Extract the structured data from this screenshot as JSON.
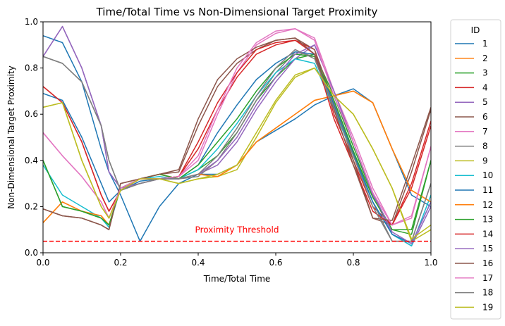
{
  "chart_data": {
    "type": "line",
    "title": "Time/Total Time vs Non-Dimensional Target Proximity",
    "xlabel": "Time/Total Time",
    "ylabel": "Non-Dimensional Target Proximity",
    "xlim": [
      0,
      1
    ],
    "ylim": [
      0,
      1
    ],
    "xticks": [
      "0.0",
      "0.2",
      "0.4",
      "0.6",
      "0.8",
      "1.0"
    ],
    "yticks": [
      "0.0",
      "0.2",
      "0.4",
      "0.6",
      "0.8",
      "1.0"
    ],
    "grid": false,
    "legend": {
      "title": "ID",
      "placement": "outside-right"
    },
    "threshold": {
      "y": 0.05,
      "label": "Proximity Threshold",
      "color": "#ff0000",
      "style": "dashed"
    },
    "x": [
      0,
      0.05,
      0.1,
      0.15,
      0.17,
      0.2,
      0.25,
      0.3,
      0.35,
      0.4,
      0.45,
      0.5,
      0.55,
      0.6,
      0.65,
      0.7,
      0.75,
      0.8,
      0.85,
      0.9,
      0.95,
      1.0
    ],
    "series": [
      {
        "name": "1",
        "color": "#1f77b4",
        "values": [
          0.94,
          0.91,
          0.74,
          0.45,
          0.35,
          0.25,
          0.05,
          0.2,
          0.3,
          0.34,
          0.34,
          0.38,
          0.48,
          0.53,
          0.58,
          0.64,
          0.68,
          0.71,
          0.65,
          0.45,
          0.25,
          0.2
        ]
      },
      {
        "name": "2",
        "color": "#ff7f0e",
        "values": [
          0.13,
          0.22,
          0.18,
          0.16,
          0.12,
          0.28,
          0.32,
          0.34,
          0.32,
          0.34,
          0.33,
          0.38,
          0.48,
          0.54,
          0.6,
          0.66,
          0.68,
          0.7,
          0.65,
          0.45,
          0.27,
          0.22
        ]
      },
      {
        "name": "3",
        "color": "#2ca02c",
        "values": [
          0.4,
          0.2,
          0.18,
          0.15,
          0.12,
          0.28,
          0.32,
          0.34,
          0.32,
          0.36,
          0.42,
          0.52,
          0.66,
          0.76,
          0.84,
          0.86,
          0.68,
          0.46,
          0.25,
          0.1,
          0.08,
          0.4
        ]
      },
      {
        "name": "4",
        "color": "#d62728",
        "values": [
          0.72,
          0.65,
          0.48,
          0.25,
          0.18,
          0.27,
          0.32,
          0.32,
          0.33,
          0.45,
          0.62,
          0.76,
          0.86,
          0.9,
          0.92,
          0.88,
          0.6,
          0.4,
          0.2,
          0.12,
          0.28,
          0.55
        ]
      },
      {
        "name": "5",
        "color": "#9467bd",
        "values": [
          0.85,
          0.98,
          0.8,
          0.55,
          0.35,
          0.28,
          0.3,
          0.32,
          0.32,
          0.34,
          0.38,
          0.48,
          0.62,
          0.74,
          0.84,
          0.9,
          0.7,
          0.48,
          0.25,
          0.08,
          0.03,
          0.2
        ]
      },
      {
        "name": "6",
        "color": "#8c564b",
        "values": [
          0.19,
          0.16,
          0.15,
          0.12,
          0.1,
          0.3,
          0.32,
          0.34,
          0.35,
          0.55,
          0.72,
          0.82,
          0.88,
          0.92,
          0.93,
          0.88,
          0.65,
          0.4,
          0.15,
          0.12,
          0.35,
          0.62
        ]
      },
      {
        "name": "7",
        "color": "#e377c2",
        "values": [
          0.52,
          0.42,
          0.33,
          0.22,
          0.15,
          0.28,
          0.32,
          0.32,
          0.33,
          0.4,
          0.6,
          0.78,
          0.9,
          0.95,
          0.97,
          0.93,
          0.7,
          0.5,
          0.28,
          0.12,
          0.15,
          0.46
        ]
      },
      {
        "name": "8",
        "color": "#7f7f7f",
        "values": [
          0.85,
          0.82,
          0.74,
          0.55,
          0.4,
          0.27,
          0.3,
          0.32,
          0.32,
          0.33,
          0.4,
          0.52,
          0.66,
          0.78,
          0.87,
          0.85,
          0.65,
          0.44,
          0.22,
          0.05,
          0.05,
          0.3
        ]
      },
      {
        "name": "9",
        "color": "#bcbd22",
        "values": [
          0.63,
          0.65,
          0.4,
          0.2,
          0.15,
          0.27,
          0.32,
          0.32,
          0.3,
          0.32,
          0.33,
          0.36,
          0.5,
          0.65,
          0.76,
          0.8,
          0.68,
          0.6,
          0.45,
          0.28,
          0.05,
          0.1
        ]
      },
      {
        "name": "10",
        "color": "#17becf",
        "values": [
          0.38,
          0.25,
          0.2,
          0.15,
          0.11,
          0.28,
          0.32,
          0.33,
          0.32,
          0.36,
          0.45,
          0.56,
          0.68,
          0.78,
          0.84,
          0.82,
          0.62,
          0.42,
          0.22,
          0.08,
          0.03,
          0.25
        ]
      },
      {
        "name": "11",
        "color": "#1f77b4",
        "values": [
          0.69,
          0.66,
          0.5,
          0.3,
          0.22,
          0.27,
          0.31,
          0.32,
          0.32,
          0.38,
          0.52,
          0.64,
          0.75,
          0.82,
          0.87,
          0.86,
          0.64,
          0.43,
          0.22,
          0.08,
          0.04,
          0.22
        ]
      },
      {
        "name": "12",
        "color": "#ff7f0e",
        "values": [
          0.13,
          0.22,
          0.18,
          0.16,
          0.12,
          0.28,
          0.32,
          0.34,
          0.32,
          0.34,
          0.33,
          0.38,
          0.48,
          0.54,
          0.6,
          0.66,
          0.68,
          0.7,
          0.65,
          0.45,
          0.27,
          0.22
        ]
      },
      {
        "name": "13",
        "color": "#2ca02c",
        "values": [
          0.4,
          0.2,
          0.18,
          0.15,
          0.12,
          0.28,
          0.32,
          0.34,
          0.32,
          0.38,
          0.48,
          0.58,
          0.7,
          0.8,
          0.86,
          0.85,
          0.66,
          0.44,
          0.24,
          0.1,
          0.1,
          0.4
        ]
      },
      {
        "name": "14",
        "color": "#d62728",
        "values": [
          0.72,
          0.65,
          0.48,
          0.25,
          0.18,
          0.27,
          0.32,
          0.32,
          0.33,
          0.48,
          0.65,
          0.78,
          0.88,
          0.91,
          0.92,
          0.86,
          0.58,
          0.38,
          0.18,
          0.12,
          0.3,
          0.57
        ]
      },
      {
        "name": "15",
        "color": "#9467bd",
        "values": [
          0.85,
          0.98,
          0.8,
          0.55,
          0.35,
          0.28,
          0.3,
          0.32,
          0.32,
          0.34,
          0.4,
          0.5,
          0.64,
          0.76,
          0.86,
          0.9,
          0.7,
          0.48,
          0.26,
          0.09,
          0.04,
          0.22
        ]
      },
      {
        "name": "16",
        "color": "#8c564b",
        "values": [
          0.19,
          0.16,
          0.15,
          0.12,
          0.1,
          0.3,
          0.32,
          0.34,
          0.36,
          0.58,
          0.75,
          0.84,
          0.89,
          0.92,
          0.93,
          0.86,
          0.62,
          0.38,
          0.15,
          0.14,
          0.38,
          0.63
        ]
      },
      {
        "name": "17",
        "color": "#e377c2",
        "values": [
          0.52,
          0.42,
          0.33,
          0.22,
          0.15,
          0.28,
          0.32,
          0.32,
          0.33,
          0.42,
          0.62,
          0.8,
          0.91,
          0.96,
          0.97,
          0.92,
          0.68,
          0.48,
          0.26,
          0.12,
          0.16,
          0.46
        ]
      },
      {
        "name": "18",
        "color": "#7f7f7f",
        "values": [
          0.85,
          0.82,
          0.74,
          0.55,
          0.4,
          0.27,
          0.3,
          0.32,
          0.32,
          0.34,
          0.42,
          0.54,
          0.68,
          0.8,
          0.88,
          0.84,
          0.63,
          0.42,
          0.2,
          0.05,
          0.05,
          0.3
        ]
      },
      {
        "name": "19",
        "color": "#bcbd22",
        "values": [
          0.63,
          0.65,
          0.4,
          0.2,
          0.15,
          0.27,
          0.32,
          0.32,
          0.3,
          0.32,
          0.34,
          0.38,
          0.52,
          0.66,
          0.77,
          0.8,
          0.68,
          0.6,
          0.45,
          0.28,
          0.06,
          0.12
        ]
      }
    ]
  }
}
